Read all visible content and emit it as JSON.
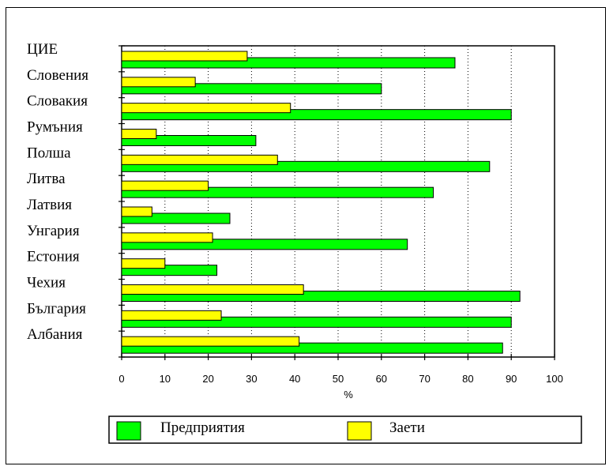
{
  "colors": {
    "enterprises": "#00ff00",
    "employed": "#ffff00"
  },
  "chart_data": {
    "type": "bar",
    "orientation": "horizontal",
    "categories": [
      "ЦИЕ",
      "Словения",
      "Словакия",
      "Румъния",
      "Полша",
      "Литва",
      "Латвия",
      "Унгария",
      "Естония",
      "Чехия",
      "България",
      "Албания"
    ],
    "series": [
      {
        "name": "Предприятия",
        "values": [
          77,
          60,
          90,
          31,
          85,
          72,
          25,
          66,
          22,
          92,
          90,
          88
        ]
      },
      {
        "name": "Заети",
        "values": [
          29,
          17,
          39,
          8,
          36,
          20,
          7,
          21,
          10,
          42,
          23,
          41
        ]
      }
    ],
    "xlabel": "%",
    "xlim": [
      0,
      100
    ],
    "xticks": [
      "0",
      "10",
      "20",
      "30",
      "40",
      "50",
      "60",
      "70",
      "80",
      "90",
      "100"
    ],
    "grid": "vertical dotted",
    "legend_position": "bottom"
  }
}
